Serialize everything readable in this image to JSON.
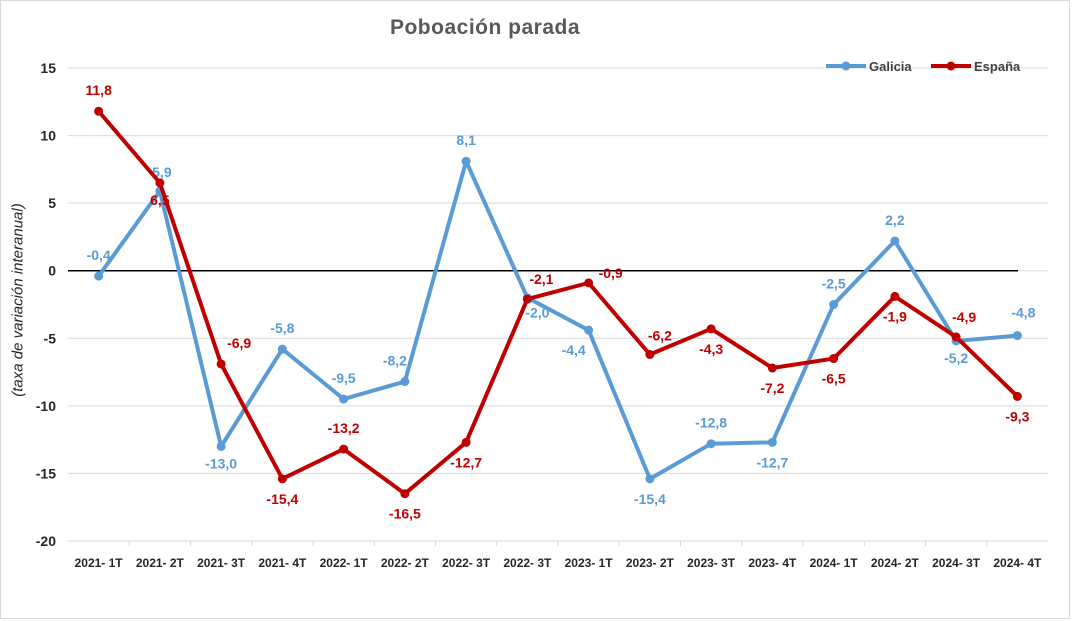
{
  "chart_data": {
    "type": "line",
    "title": "Poboación parada",
    "xlabel": "",
    "ylabel": "(taxa de variación interanual)",
    "ylim": [
      -20,
      15
    ],
    "yticks": [
      15,
      10,
      5,
      0,
      -5,
      -10,
      -15,
      -20
    ],
    "grid": true,
    "legend_position": "top-right",
    "categories": [
      "2021- 1T",
      "2021- 2T",
      "2021- 3T",
      "2021- 4T",
      "2022- 1T",
      "2022- 2T",
      "2022- 3T",
      "2022- 3T",
      "2023- 1T",
      "2023- 2T",
      "2023- 3T",
      "2023- 4T",
      "2024- 1T",
      "2024- 2T",
      "2024- 3T",
      "2024- 4T"
    ],
    "series": [
      {
        "name": "Galicia",
        "color": "#5b9bd5",
        "values": [
          -0.4,
          5.9,
          -13.0,
          -5.8,
          -9.5,
          -8.2,
          8.1,
          -2.0,
          -4.4,
          -15.4,
          -12.8,
          -12.7,
          -2.5,
          2.2,
          -5.2,
          -4.8
        ],
        "labels": [
          "-0,4",
          "5,9",
          "-13,0",
          "-5,8",
          "-9,5",
          "-8,2",
          "8,1",
          "-2,0",
          "-4,4",
          "-15,4",
          "-12,8",
          "-12,7",
          "-2,5",
          "2,2",
          "-5,2",
          "-4,8"
        ]
      },
      {
        "name": "España",
        "color": "#c00000",
        "values": [
          11.8,
          6.5,
          -6.9,
          -15.4,
          -13.2,
          -16.5,
          -12.7,
          -2.1,
          -0.9,
          -6.2,
          -4.3,
          -7.2,
          -6.5,
          -1.9,
          -4.9,
          -9.3
        ],
        "labels": [
          "11,8",
          "6,5",
          "-6,9",
          "-15,4",
          "-13,2",
          "-16,5",
          "-12,7",
          "-2,1",
          "-0,9",
          "-6,2",
          "-4,3",
          "-7,2",
          "-6,5",
          "-1,9",
          "-4,9",
          "-9,3"
        ]
      }
    ]
  }
}
